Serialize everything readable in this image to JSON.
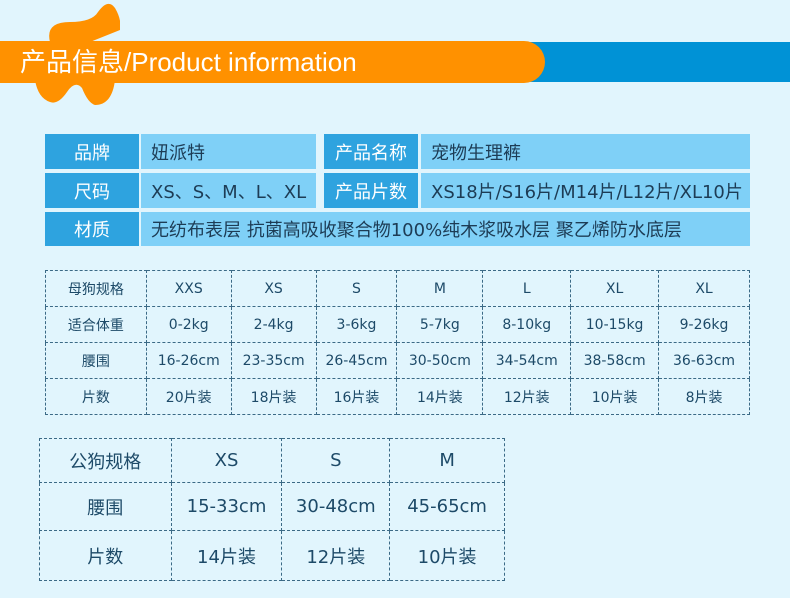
{
  "header": {
    "title": "产品信息/Product information",
    "colors": {
      "orange": "#ff9100",
      "blue": "#0092d6"
    }
  },
  "info": {
    "brand_label": "品牌",
    "brand": "妞派特",
    "name_label": "产品名称",
    "name": "宠物生理裤",
    "size_label": "尺码",
    "sizes": "XS、S、M、L、XL",
    "count_label": "产品片数",
    "counts": "XS18片/S16片/M14片/L12片/XL10片",
    "material_label": "材质",
    "material": "无纺布表层 抗菌高吸收聚合物100%纯木浆吸水层 聚乙烯防水底层"
  },
  "female_table": {
    "rows": [
      [
        "母狗规格",
        "XXS",
        "XS",
        "S",
        "M",
        "L",
        "XL",
        "XL"
      ],
      [
        "适合体重",
        "0-2kg",
        "2-4kg",
        "3-6kg",
        "5-7kg",
        "8-10kg",
        "10-15kg",
        "9-26kg"
      ],
      [
        "腰围",
        "16-26cm",
        "23-35cm",
        "26-45cm",
        "30-50cm",
        "34-54cm",
        "38-58cm",
        "36-63cm"
      ],
      [
        "片数",
        "20片装",
        "18片装",
        "16片装",
        "14片装",
        "12片装",
        "10片装",
        "8片装"
      ]
    ]
  },
  "male_table": {
    "rows": [
      [
        "公狗规格",
        "XS",
        "S",
        "M"
      ],
      [
        "腰围",
        "15-33cm",
        "30-48cm",
        "45-65cm"
      ],
      [
        "片数",
        "14片装",
        "12片装",
        "10片装"
      ]
    ]
  }
}
